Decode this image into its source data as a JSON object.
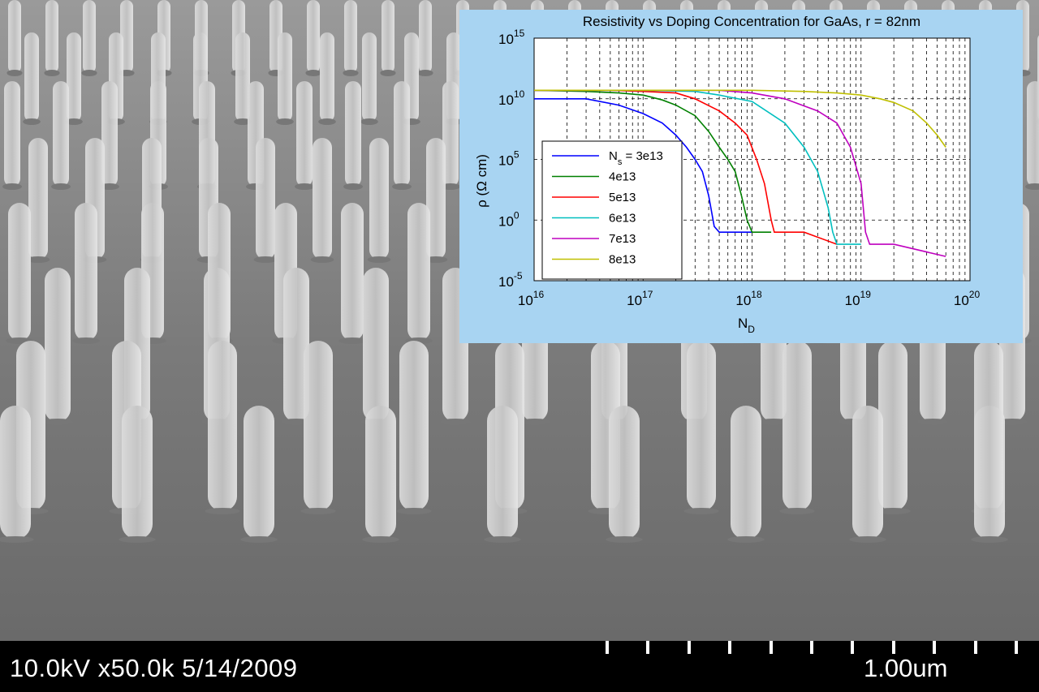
{
  "sem": {
    "info": "10.0kV x50.0k 5/14/2009",
    "scale_label": "1.00um",
    "background_color": "#8a8a8a"
  },
  "chart_data": {
    "type": "line",
    "title": "Resistivity vs Doping Concentration for GaAs, r = 82nm",
    "xlabel_main": "N",
    "xlabel_sub": "D",
    "ylabel": "ρ (Ω cm)",
    "xscale": "log",
    "yscale": "log",
    "xlim": [
      1e+16,
      1e+20
    ],
    "ylim": [
      1e-05,
      1000000000000000.0
    ],
    "grid": true,
    "legend_position": "bottom-left",
    "x_ticks": [
      {
        "base": "10",
        "exp": "16"
      },
      {
        "base": "10",
        "exp": "17"
      },
      {
        "base": "10",
        "exp": "18"
      },
      {
        "base": "10",
        "exp": "19"
      },
      {
        "base": "10",
        "exp": "20"
      }
    ],
    "y_ticks": [
      {
        "base": "10",
        "exp": "-5"
      },
      {
        "base": "10",
        "exp": "0"
      },
      {
        "base": "10",
        "exp": "5"
      },
      {
        "base": "10",
        "exp": "10"
      },
      {
        "base": "10",
        "exp": "15"
      }
    ],
    "series": [
      {
        "name": "N",
        "name_sub": "s",
        "name_rest": " = 3e13",
        "color": "#0000ff",
        "x": [
          1e+16,
          3e+16,
          6e+16,
          1e+17,
          1.5e+17,
          2e+17,
          2.5e+17,
          3e+17,
          3.5e+17,
          4e+17,
          4.5e+17,
          5e+17,
          6e+17,
          8e+17,
          1e+18
        ],
        "y": [
          10000000000.0,
          10000000000.0,
          3000000000.0,
          600000000.0,
          100000000.0,
          10000000.0,
          1000000.0,
          100000.0,
          10000.0,
          100.0,
          0.3,
          0.1,
          0.1,
          0.1,
          0.1
        ]
      },
      {
        "name": "4e13",
        "color": "#008000",
        "x": [
          1e+16,
          3e+16,
          6e+16,
          1e+17,
          1.5e+17,
          2e+17,
          3e+17,
          4e+17,
          5e+17,
          6e+17,
          7e+17,
          8e+17,
          9e+17,
          1e+18,
          1.5e+18
        ],
        "y": [
          50000000000.0,
          40000000000.0,
          30000000000.0,
          20000000000.0,
          8000000000.0,
          3000000000.0,
          400000000.0,
          20000000.0,
          1000000.0,
          100000.0,
          10000.0,
          100.0,
          1.0,
          0.1,
          0.1
        ]
      },
      {
        "name": "5e13",
        "color": "#ff0000",
        "x": [
          1e+16,
          5e+16,
          1e+17,
          2e+17,
          3e+17,
          5e+17,
          7e+17,
          9e+17,
          1.1e+18,
          1.3e+18,
          1.5e+18,
          1.6e+18,
          2e+18,
          3e+18,
          6e+18
        ],
        "y": [
          50000000000.0,
          50000000000.0,
          40000000000.0,
          30000000000.0,
          10000000000.0,
          1000000000.0,
          100000000.0,
          10000000.0,
          100000.0,
          1000.0,
          1.0,
          0.1,
          0.1,
          0.1,
          0.01
        ]
      },
      {
        "name": "6e13",
        "color": "#00bfbf",
        "x": [
          1e+16,
          1e+17,
          3e+17,
          5e+17,
          1e+18,
          2e+18,
          3e+18,
          4e+18,
          5e+18,
          5.5e+18,
          6e+18,
          7e+18,
          1e+19
        ],
        "y": [
          50000000000.0,
          50000000000.0,
          40000000000.0,
          20000000000.0,
          6000000000.0,
          100000000.0,
          1000000.0,
          10000.0,
          10.0,
          0.1,
          0.01,
          0.01,
          0.01
        ]
      },
      {
        "name": "7e13",
        "color": "#bf00bf",
        "x": [
          1e+16,
          5e+17,
          1e+18,
          2e+18,
          4e+18,
          6e+18,
          8e+18,
          1e+19,
          1.1e+19,
          1.2e+19,
          2e+19,
          6e+19
        ],
        "y": [
          50000000000.0,
          50000000000.0,
          30000000000.0,
          10000000000.0,
          1000000000.0,
          100000000.0,
          1000000.0,
          1000.0,
          0.1,
          0.01,
          0.01,
          0.001
        ]
      },
      {
        "name": "8e13",
        "color": "#bfbf00",
        "x": [
          1e+16,
          1e+18,
          3e+18,
          6e+18,
          1e+19,
          1.5e+19,
          2e+19,
          3e+19,
          4e+19,
          5e+19,
          6e+19
        ],
        "y": [
          50000000000.0,
          50000000000.0,
          40000000000.0,
          30000000000.0,
          20000000000.0,
          10000000000.0,
          5000000000.0,
          1000000000.0,
          100000000.0,
          10000000.0,
          1000000.0
        ]
      }
    ]
  }
}
